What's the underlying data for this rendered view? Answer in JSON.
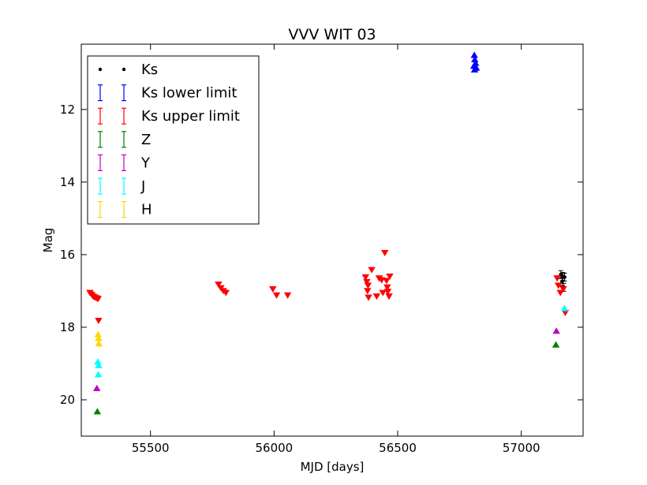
{
  "chart_data": {
    "type": "scatter",
    "title": "VVV WIT 03",
    "xlabel": "MJD [days]",
    "ylabel": "Mag",
    "xlim": [
      55220,
      57250
    ],
    "ylim": [
      21.0,
      10.2
    ],
    "y_inverted": true,
    "x_ticks": [
      55500,
      56000,
      56500,
      57000
    ],
    "x_tick_labels": [
      "55500",
      "56000",
      "56500",
      "57000"
    ],
    "y_ticks": [
      12,
      14,
      16,
      18,
      20
    ],
    "y_tick_labels": [
      "12",
      "14",
      "16",
      "18",
      "20"
    ],
    "legend": {
      "position": "top-left",
      "entries": [
        {
          "label": "Ks",
          "color": "#000000",
          "symbol": "dot"
        },
        {
          "label": "Ks lower limit",
          "color": "#0000ff",
          "symbol": "errorbar"
        },
        {
          "label": "Ks upper limit",
          "color": "#ff0000",
          "symbol": "errorbar"
        },
        {
          "label": "Z",
          "color": "#007f00",
          "symbol": "errorbar"
        },
        {
          "label": "Y",
          "color": "#bf00bf",
          "symbol": "errorbar"
        },
        {
          "label": "J",
          "color": "#00ffff",
          "symbol": "errorbar"
        },
        {
          "label": "H",
          "color": "#ffd700",
          "symbol": "errorbar"
        }
      ]
    },
    "series": [
      {
        "name": "Ks",
        "color": "#000000",
        "marker": "errorbar-dot",
        "points": [
          [
            57160,
            16.55
          ],
          [
            57168,
            16.6
          ],
          [
            57175,
            16.62
          ],
          [
            57165,
            16.75
          ],
          [
            57172,
            16.9
          ]
        ]
      },
      {
        "name": "Ks lower limit",
        "color": "#0000ff",
        "marker": "triangle-up",
        "points": [
          [
            56810,
            10.5
          ],
          [
            56812,
            10.62
          ],
          [
            56815,
            10.72
          ],
          [
            56808,
            10.8
          ],
          [
            56818,
            10.85
          ],
          [
            56811,
            10.9
          ]
        ]
      },
      {
        "name": "Ks upper limit",
        "color": "#ff0000",
        "marker": "triangle-down",
        "points": [
          [
            55255,
            17.05
          ],
          [
            55262,
            17.1
          ],
          [
            55268,
            17.15
          ],
          [
            55275,
            17.18
          ],
          [
            55282,
            17.2
          ],
          [
            55288,
            17.22
          ],
          [
            55290,
            17.82
          ],
          [
            55775,
            16.82
          ],
          [
            55785,
            16.92
          ],
          [
            55795,
            17.0
          ],
          [
            55805,
            17.05
          ],
          [
            55995,
            16.95
          ],
          [
            56010,
            17.12
          ],
          [
            56055,
            17.12
          ],
          [
            56370,
            16.62
          ],
          [
            56375,
            16.75
          ],
          [
            56380,
            16.85
          ],
          [
            56378,
            17.0
          ],
          [
            56382,
            17.18
          ],
          [
            56395,
            16.42
          ],
          [
            56415,
            17.15
          ],
          [
            56425,
            16.65
          ],
          [
            56435,
            16.7
          ],
          [
            56440,
            17.05
          ],
          [
            56448,
            15.95
          ],
          [
            56455,
            16.72
          ],
          [
            56458,
            16.9
          ],
          [
            56460,
            17.02
          ],
          [
            56465,
            17.15
          ],
          [
            56468,
            16.6
          ],
          [
            57145,
            16.65
          ],
          [
            57150,
            16.85
          ],
          [
            57158,
            17.05
          ],
          [
            57170,
            16.95
          ],
          [
            57178,
            17.6
          ]
        ]
      },
      {
        "name": "Z",
        "color": "#007f00",
        "marker": "triangle-up",
        "points": [
          [
            55285,
            20.32
          ],
          [
            57140,
            18.48
          ]
        ]
      },
      {
        "name": "Y",
        "color": "#bf00bf",
        "marker": "triangle-up",
        "points": [
          [
            55283,
            19.68
          ],
          [
            57142,
            18.1
          ]
        ]
      },
      {
        "name": "J",
        "color": "#00ffff",
        "marker": "triangle-up",
        "points": [
          [
            55287,
            18.95
          ],
          [
            55290,
            19.05
          ],
          [
            55289,
            19.3
          ],
          [
            57175,
            17.48
          ]
        ]
      },
      {
        "name": "H",
        "color": "#ffd700",
        "marker": "triangle-up",
        "points": [
          [
            55288,
            18.2
          ],
          [
            55290,
            18.3
          ],
          [
            55291,
            18.45
          ]
        ]
      }
    ]
  }
}
